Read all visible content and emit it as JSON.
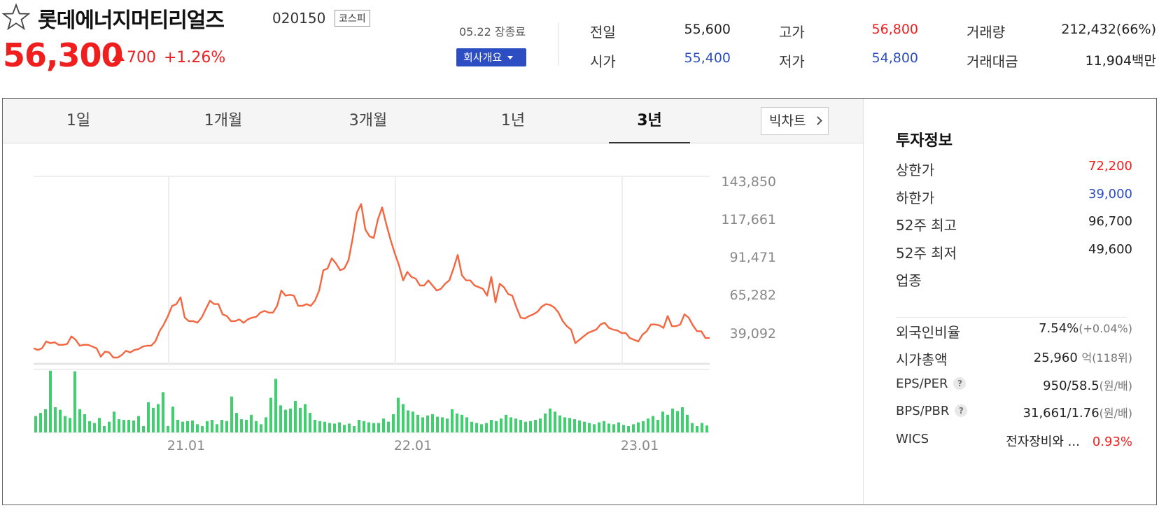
{
  "header": {
    "stock_name": "롯데에너지머티리얼즈",
    "stock_code": "020150",
    "market_badge": "코스피",
    "price": "56,300",
    "change": "700",
    "change_rate": "+1.26%",
    "date_status": "05.22 장종료",
    "company_button": "회사개요",
    "quotes": {
      "prev_label": "전일",
      "prev_value": "55,600",
      "open_label": "시가",
      "open_value": "55,400",
      "high_label": "고가",
      "high_value": "56,800",
      "low_label": "저가",
      "low_value": "54,800",
      "volume_label": "거래량",
      "volume_value": "212,432(66%)",
      "amount_label": "거래대금",
      "amount_value": "11,904백만"
    },
    "colors": {
      "up": "#f01f1f",
      "down": "#2c4ec2"
    }
  },
  "tabs": [
    {
      "label": "1일",
      "active": false
    },
    {
      "label": "1개월",
      "active": false
    },
    {
      "label": "3개월",
      "active": false
    },
    {
      "label": "1년",
      "active": false
    },
    {
      "label": "3년",
      "active": true
    }
  ],
  "big_chart_button": "빅차트",
  "chart_data": {
    "type": "line",
    "y_ticks": [
      "143,850",
      "117,661",
      "91,471",
      "65,282",
      "39,092"
    ],
    "x_ticks": [
      "21.01",
      "22.01",
      "23.01"
    ],
    "ylim": [
      39092,
      143850
    ],
    "line_color": "#f4663f",
    "volume_color": "#3fcf6f",
    "grid": true,
    "price_series": [
      45000,
      44000,
      45000,
      49000,
      48000,
      48500,
      47000,
      47000,
      47500,
      52000,
      50000,
      46500,
      47000,
      47000,
      46000,
      45000,
      40000,
      43000,
      42500,
      39500,
      39500,
      41000,
      43500,
      42500,
      44000,
      44500,
      46000,
      46500,
      46500,
      49000,
      55000,
      59000,
      64000,
      70000,
      71000,
      75000,
      63000,
      61000,
      61000,
      60000,
      63000,
      68000,
      73000,
      71000,
      71000,
      65000,
      64000,
      61000,
      61000,
      62000,
      60000,
      62000,
      63000,
      63500,
      66000,
      67000,
      66000,
      66000,
      70000,
      79000,
      76000,
      76500,
      76000,
      70000,
      70000,
      71000,
      70000,
      73000,
      79000,
      91000,
      92000,
      98000,
      95000,
      91000,
      92000,
      97000,
      110000,
      125000,
      130000,
      115000,
      111000,
      110000,
      121000,
      128000,
      118000,
      109000,
      101000,
      94000,
      85000,
      90000,
      87000,
      86000,
      82000,
      82000,
      85000,
      82000,
      79000,
      80000,
      83000,
      85000,
      92000,
      100000,
      88000,
      85000,
      85000,
      82000,
      81000,
      80000,
      76000,
      87000,
      72000,
      83000,
      81000,
      77000,
      76000,
      69000,
      63000,
      62500,
      64000,
      65000,
      66500,
      69500,
      71000,
      70500,
      69000,
      66000,
      61000,
      58000,
      56000,
      48000,
      50000,
      52000,
      54000,
      55000,
      56000,
      59000,
      60000,
      57000,
      56000,
      55500,
      54000,
      54000,
      51000,
      50000,
      49000,
      53000,
      55000,
      59000,
      59000,
      58500,
      57000,
      64000,
      58000,
      58000,
      59000,
      65000,
      63000,
      58500,
      55000,
      55000,
      51000,
      51000
    ],
    "volume_series": [
      0.26,
      0.31,
      0.37,
      0.98,
      0.4,
      0.36,
      0.26,
      0.23,
      0.97,
      0.37,
      0.29,
      0.18,
      0.15,
      0.23,
      0.1,
      0.17,
      0.33,
      0.21,
      0.2,
      0.2,
      0.19,
      0.26,
      0.1,
      0.48,
      0.39,
      0.45,
      0.64,
      0.1,
      0.41,
      0.2,
      0.17,
      0.18,
      0.19,
      0.13,
      0.1,
      0.18,
      0.2,
      0.13,
      0.2,
      0.18,
      0.57,
      0.31,
      0.21,
      0.2,
      0.28,
      0.18,
      0.13,
      0.24,
      0.55,
      0.85,
      0.43,
      0.36,
      0.38,
      0.5,
      0.39,
      0.45,
      0.31,
      0.2,
      0.18,
      0.17,
      0.15,
      0.14,
      0.16,
      0.12,
      0.14,
      0.1,
      0.2,
      0.18,
      0.16,
      0.15,
      0.15,
      0.22,
      0.17,
      0.29,
      0.55,
      0.45,
      0.35,
      0.33,
      0.28,
      0.24,
      0.27,
      0.29,
      0.25,
      0.24,
      0.22,
      0.37,
      0.3,
      0.28,
      0.24,
      0.17,
      0.15,
      0.13,
      0.15,
      0.2,
      0.18,
      0.22,
      0.28,
      0.24,
      0.22,
      0.2,
      0.17,
      0.18,
      0.2,
      0.22,
      0.3,
      0.38,
      0.33,
      0.27,
      0.24,
      0.23,
      0.21,
      0.19,
      0.17,
      0.15,
      0.13,
      0.16,
      0.18,
      0.14,
      0.13,
      0.16,
      0.12,
      0.1,
      0.13,
      0.16,
      0.18,
      0.22,
      0.26,
      0.2,
      0.33,
      0.28,
      0.38,
      0.34,
      0.4,
      0.28,
      0.15,
      0.1,
      0.15,
      0.11
    ]
  },
  "invest_info": {
    "title": "투자정보",
    "rows": [
      {
        "label": "상한가",
        "value": "72,200",
        "color": "red"
      },
      {
        "label": "하한가",
        "value": "39,000",
        "color": "blue"
      },
      {
        "label": "52주 최고",
        "value": "96,700",
        "color": "black"
      },
      {
        "label": "52주 최저",
        "value": "49,600",
        "color": "black"
      },
      {
        "label": "업종",
        "value": "",
        "color": "black"
      }
    ],
    "foreign_label": "외국인비율",
    "foreign_value": "7.54%",
    "foreign_change": "(+0.04%)",
    "mcap_label": "시가총액",
    "mcap_value": "25,960",
    "mcap_unit": "억",
    "mcap_rank": "(118위)",
    "eps_label": "EPS/PER",
    "eps_value": "950/58.5",
    "eps_unit": "(원/배)",
    "bps_label": "BPS/PBR",
    "bps_value": "31,661/1.76",
    "bps_unit": "(원/배)",
    "help_icon": "?",
    "wics_label": "WICS",
    "wics_value": "전자장비와 ...",
    "wics_rate": "0.93%"
  }
}
